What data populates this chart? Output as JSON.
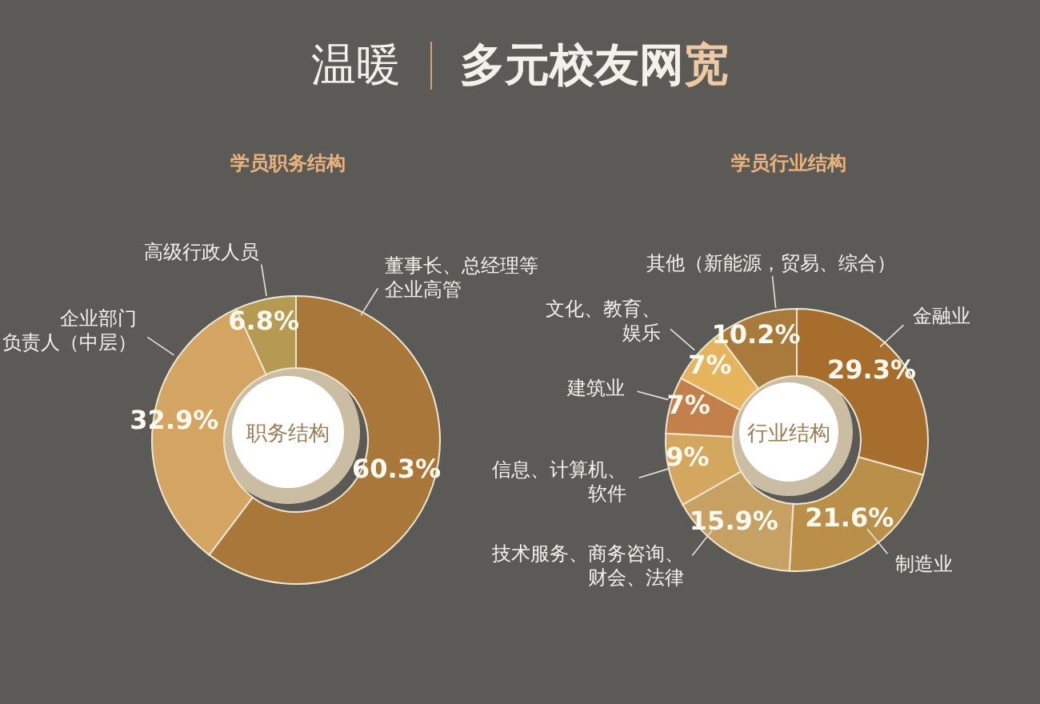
{
  "chart_data": [
    {
      "type": "other",
      "title": "温暖",
      "subtitle": "多元校友网宽"
    },
    {
      "type": "donut",
      "title": "学员职务结构",
      "annotations": [
        "职务结构"
      ],
      "categories": [
        "董事长、总经理等企业高管",
        "企业部门负责人（中层）",
        "高级行政人员"
      ],
      "values": [
        60.3,
        32.9,
        6.8
      ],
      "value_labels": [
        "60.3%",
        "32.9%",
        "6.8%"
      ],
      "colors": [
        "#a9773a",
        "#d3a462",
        "#b49a52"
      ]
    },
    {
      "type": "donut",
      "title": "学员行业结构",
      "annotations": [
        "行业结构"
      ],
      "categories": [
        "金融业",
        "制造业",
        "技术服务、商务咨询、财会、法律",
        "信息、计算机、软件",
        "建筑业",
        "文化、教育、娱乐",
        "其他（新能源，贸易、综合）"
      ],
      "values": [
        29.3,
        21.6,
        15.9,
        9,
        7,
        7,
        10.2
      ],
      "value_labels": [
        "29.3%",
        "21.6%",
        "15.9%",
        "9%",
        "7%",
        "7%",
        "10.2%"
      ],
      "colors": [
        "#a66d2c",
        "#b98f4a",
        "#c7a064",
        "#d4a75e",
        "#c4804a",
        "#e6b45c",
        "#a87a3c"
      ]
    }
  ]
}
